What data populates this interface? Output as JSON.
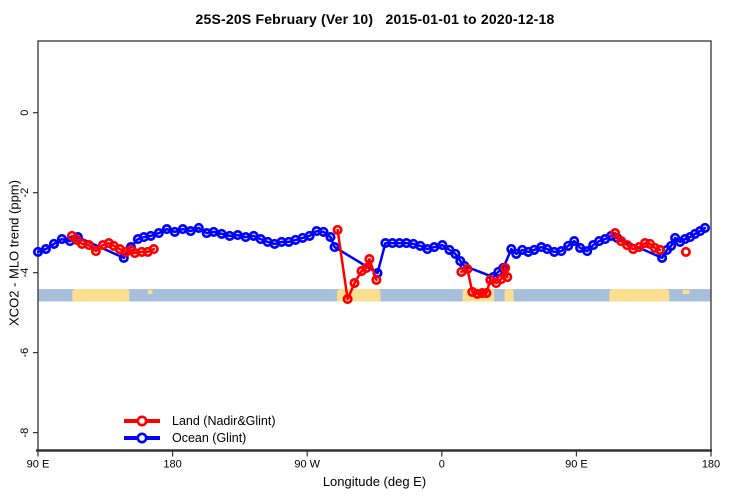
{
  "title": "25S-20S February (Ver 10)   2015-01-01 to 2020-12-18",
  "chart_data": {
    "type": "line",
    "title": "25S-20S February (Ver 10)   2015-01-01 to 2020-12-18",
    "xlabel": "Longitude (deg E)",
    "ylabel": "XCO2 - MLO trend (ppm)",
    "xlim": [
      90,
      540
    ],
    "ylim": [
      -8,
      0
    ],
    "grid": false,
    "legend_position": "bottom-left",
    "x_ticks": [
      {
        "value": 90,
        "label": "90 E"
      },
      {
        "value": 180,
        "label": "180"
      },
      {
        "value": 270,
        "label": "90 W"
      },
      {
        "value": 360,
        "label": "0"
      },
      {
        "value": 450,
        "label": "90 E"
      },
      {
        "value": 540,
        "label": "180"
      }
    ],
    "y_ticks": [
      {
        "value": 0,
        "label": "0"
      },
      {
        "value": -2,
        "label": "-2"
      },
      {
        "value": -4,
        "label": "-4"
      },
      {
        "value": -6,
        "label": "-6"
      },
      {
        "value": -8,
        "label": "-8"
      }
    ],
    "colors": {
      "land": "#ff0000",
      "ocean": "#0000ff",
      "axis": "#333333",
      "map_ocean": "#a8bfdc",
      "map_land": "#fbdf90"
    },
    "legend": [
      {
        "name": "Land (Nadir&Glint)",
        "color": "#ff0000"
      },
      {
        "name": "Ocean (Glint)",
        "color": "#0000ff"
      }
    ],
    "map_band": {
      "value_top": -4.41,
      "value_bottom": -4.72,
      "ocean_color": "#a8bfdc",
      "land_color": "#fbdf90",
      "land_segments_lon": [
        [
          113,
          151
        ],
        [
          290,
          319
        ],
        [
          374,
          395
        ],
        [
          402,
          408
        ],
        [
          472,
          512
        ]
      ],
      "island_segments_lon": [
        [
          163.5,
          166.5
        ],
        [
          521,
          525.5
        ]
      ]
    },
    "series": [
      {
        "name": "Land (Nadir&Glint)",
        "color": "#ff0000",
        "marker": "open-circle",
        "segments": [
          [
            [
              112.7,
              -3.08
            ],
            [
              116.0,
              -3.18
            ],
            [
              119.4,
              -3.28
            ],
            [
              124.1,
              -3.31
            ],
            [
              128.7,
              -3.46
            ],
            [
              133.4,
              -3.31
            ],
            [
              137.4,
              -3.26
            ],
            [
              140.7,
              -3.33
            ],
            [
              144.7,
              -3.41
            ],
            [
              148.8,
              -3.48
            ],
            [
              152.1,
              -3.43
            ],
            [
              154.8,
              -3.51
            ],
            [
              159.4,
              -3.48
            ],
            [
              163.4,
              -3.48
            ],
            [
              167.4,
              -3.41
            ]
          ],
          [
            [
              290.3,
              -2.93
            ],
            [
              297.0,
              -4.66
            ],
            [
              301.6,
              -4.26
            ],
            [
              306.3,
              -3.96
            ],
            [
              309.6,
              -3.88
            ],
            [
              311.6,
              -3.66
            ],
            [
              316.3,
              -4.18
            ]
          ],
          [
            [
              373.1,
              -3.98
            ],
            [
              377.1,
              -3.91
            ],
            [
              380.4,
              -4.48
            ],
            [
              383.8,
              -4.53
            ],
            [
              387.1,
              -4.51
            ],
            [
              389.8,
              -4.51
            ],
            [
              392.4,
              -4.18
            ],
            [
              396.4,
              -4.26
            ],
            [
              399.8,
              -4.16
            ],
            [
              402.4,
              -3.88
            ],
            [
              403.8,
              -4.11
            ]
          ],
          [
            [
              475.9,
              -3.01
            ],
            [
              479.9,
              -3.21
            ],
            [
              483.9,
              -3.31
            ],
            [
              487.9,
              -3.41
            ],
            [
              491.9,
              -3.36
            ],
            [
              495.9,
              -3.26
            ],
            [
              499.2,
              -3.28
            ],
            [
              502.5,
              -3.38
            ],
            [
              505.9,
              -3.43
            ]
          ],
          [
            [
              523.2,
              -3.48
            ]
          ]
        ]
      },
      {
        "name": "Ocean (Glint)",
        "color": "#0000ff",
        "marker": "open-circle",
        "segments": [
          [
            [
              90.0,
              -3.48
            ],
            [
              95.3,
              -3.41
            ],
            [
              100.7,
              -3.28
            ],
            [
              106.0,
              -3.16
            ],
            [
              111.4,
              -3.21
            ],
            [
              116.7,
              -3.11
            ],
            [
              147.4,
              -3.63
            ],
            [
              152.1,
              -3.36
            ],
            [
              156.8,
              -3.16
            ],
            [
              160.8,
              -3.11
            ],
            [
              165.4,
              -3.08
            ],
            [
              170.8,
              -3.01
            ],
            [
              176.1,
              -2.91
            ],
            [
              181.5,
              -2.98
            ],
            [
              186.8,
              -2.91
            ],
            [
              192.1,
              -2.96
            ],
            [
              197.5,
              -2.88
            ],
            [
              202.8,
              -3.01
            ],
            [
              207.5,
              -2.98
            ],
            [
              212.8,
              -3.03
            ],
            [
              218.2,
              -3.08
            ],
            [
              223.5,
              -3.06
            ],
            [
              228.9,
              -3.11
            ],
            [
              234.2,
              -3.08
            ],
            [
              238.9,
              -3.16
            ],
            [
              243.6,
              -3.23
            ],
            [
              248.2,
              -3.28
            ],
            [
              252.9,
              -3.23
            ],
            [
              257.6,
              -3.23
            ],
            [
              262.2,
              -3.18
            ],
            [
              266.9,
              -3.13
            ],
            [
              271.6,
              -3.08
            ],
            [
              276.3,
              -2.96
            ],
            [
              280.9,
              -2.98
            ],
            [
              285.6,
              -3.11
            ],
            [
              288.3,
              -3.36
            ],
            [
              317.0,
              -4.01
            ],
            [
              322.3,
              -3.26
            ],
            [
              327.0,
              -3.26
            ],
            [
              331.7,
              -3.26
            ],
            [
              336.4,
              -3.26
            ],
            [
              341.0,
              -3.28
            ],
            [
              345.7,
              -3.33
            ],
            [
              350.4,
              -3.41
            ],
            [
              355.0,
              -3.36
            ],
            [
              360.4,
              -3.31
            ],
            [
              365.1,
              -3.43
            ],
            [
              369.1,
              -3.53
            ],
            [
              372.4,
              -3.71
            ],
            [
              375.1,
              -3.83
            ],
            [
              394.4,
              -4.11
            ],
            [
              397.8,
              -3.98
            ],
            [
              401.1,
              -3.88
            ],
            [
              406.5,
              -3.41
            ],
            [
              409.8,
              -3.53
            ],
            [
              413.8,
              -3.43
            ],
            [
              417.8,
              -3.48
            ],
            [
              421.8,
              -3.43
            ],
            [
              426.5,
              -3.36
            ],
            [
              430.5,
              -3.41
            ],
            [
              435.2,
              -3.48
            ],
            [
              439.9,
              -3.46
            ],
            [
              444.5,
              -3.33
            ],
            [
              448.5,
              -3.21
            ],
            [
              452.5,
              -3.38
            ],
            [
              457.2,
              -3.46
            ],
            [
              461.2,
              -3.31
            ],
            [
              465.2,
              -3.21
            ],
            [
              469.2,
              -3.16
            ],
            [
              473.2,
              -3.08
            ],
            [
              477.2,
              -3.13
            ],
            [
              507.3,
              -3.63
            ],
            [
              510.6,
              -3.43
            ],
            [
              513.3,
              -3.33
            ],
            [
              516.0,
              -3.13
            ],
            [
              519.3,
              -3.23
            ],
            [
              522.6,
              -3.16
            ],
            [
              526.0,
              -3.11
            ],
            [
              529.3,
              -3.03
            ],
            [
              532.7,
              -2.96
            ],
            [
              536.0,
              -2.88
            ]
          ]
        ]
      }
    ]
  }
}
